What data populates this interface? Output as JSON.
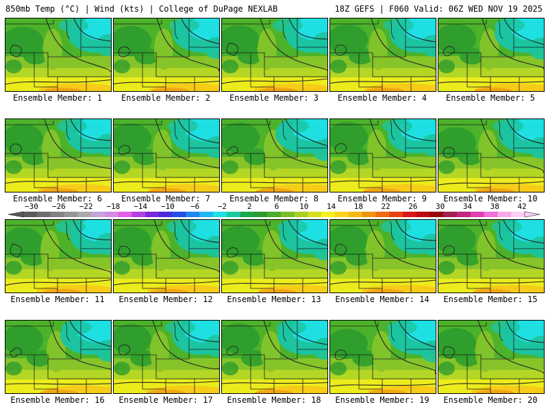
{
  "header": {
    "left": "850mb Temp (°C) | Wind (kts) | College of DuPage NEXLAB",
    "right": "18Z GEFS | F060 Valid: 06Z WED NOV 19 2025"
  },
  "panels": [
    {
      "label": "Ensemble Member: 1"
    },
    {
      "label": "Ensemble Member: 2"
    },
    {
      "label": "Ensemble Member: 3"
    },
    {
      "label": "Ensemble Member: 4"
    },
    {
      "label": "Ensemble Member: 5"
    },
    {
      "label": "Ensemble Member: 6"
    },
    {
      "label": "Ensemble Member: 7"
    },
    {
      "label": "Ensemble Member: 8"
    },
    {
      "label": "Ensemble Member: 9"
    },
    {
      "label": "Ensemble Member: 10"
    },
    {
      "label": "Ensemble Member: 11"
    },
    {
      "label": "Ensemble Member: 12"
    },
    {
      "label": "Ensemble Member: 13"
    },
    {
      "label": "Ensemble Member: 14"
    },
    {
      "label": "Ensemble Member: 15"
    },
    {
      "label": "Ensemble Member: 16"
    },
    {
      "label": "Ensemble Member: 17"
    },
    {
      "label": "Ensemble Member: 18"
    },
    {
      "label": "Ensemble Member: 19"
    },
    {
      "label": "Ensemble Member: 20"
    }
  ],
  "colorbar": {
    "ticks": [
      "−30",
      "−26",
      "−22",
      "−18",
      "−14",
      "−10",
      "−6",
      "−2",
      "2",
      "6",
      "10",
      "14",
      "18",
      "22",
      "26",
      "30",
      "34",
      "38",
      "42"
    ],
    "colors": [
      "#5a5a5a",
      "#6e6e6e",
      "#828282",
      "#969696",
      "#aaaaaa",
      "#c3a3d9",
      "#d68ae0",
      "#e060e6",
      "#b040e0",
      "#7a28d8",
      "#4b2ad8",
      "#2450e8",
      "#1f88f0",
      "#20b8f0",
      "#20e0e6",
      "#1ec8a0",
      "#1aa84a",
      "#2e9a2e",
      "#4aae2a",
      "#78c028",
      "#a6d024",
      "#d6e020",
      "#f4f020",
      "#f8d418",
      "#f4b814",
      "#f09410",
      "#ec6c10",
      "#e44414",
      "#d81818",
      "#b80c10",
      "#940808",
      "#a02050",
      "#c02880",
      "#e040b0",
      "#f070d8",
      "#f8a8ec",
      "#fcd0f4"
    ]
  },
  "field_colors": {
    "cyan": "#1ee0e2",
    "teal": "#1cc4a0",
    "dkgreen": "#2f9e2c",
    "green": "#4cb22a",
    "ygreen": "#86c42a",
    "lime": "#b4d624",
    "yellow": "#ecec1c",
    "gold": "#f6cc18",
    "orange": "#f2a614"
  }
}
